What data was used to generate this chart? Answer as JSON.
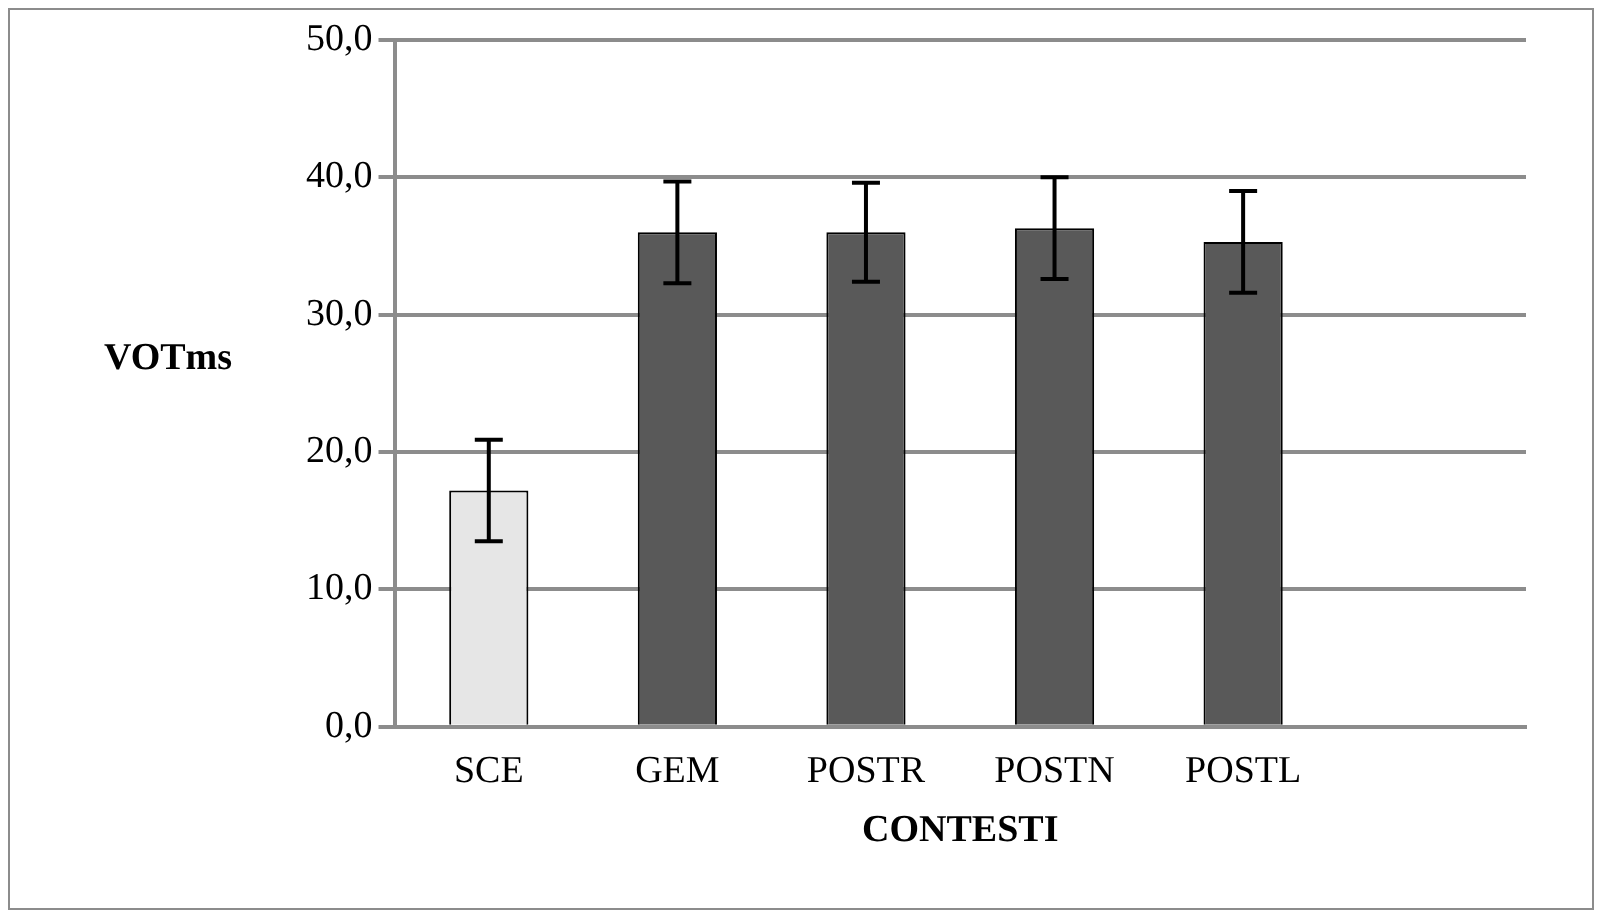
{
  "chart_data": {
    "type": "bar",
    "xlabel": "CONTESTI",
    "ylabel": "VOTms",
    "categories": [
      "SCE",
      "GEM",
      "POSTR",
      "POSTN",
      "POSTL",
      null
    ],
    "values": [
      17.2,
      36.0,
      36.0,
      36.3,
      35.3,
      null
    ],
    "errors": [
      3.7,
      3.7,
      3.6,
      3.7,
      3.7,
      null
    ],
    "colors": [
      "#e6e6e6",
      "#595959",
      "#595959",
      "#595959",
      "#595959",
      "#595959"
    ],
    "ylim": [
      0,
      50
    ],
    "yticks": [
      {
        "value": 0,
        "label": "0,0"
      },
      {
        "value": 10,
        "label": "10,0"
      },
      {
        "value": 20,
        "label": "20,0"
      },
      {
        "value": 30,
        "label": "30,0"
      },
      {
        "value": 40,
        "label": "40,0"
      },
      {
        "value": 50,
        "label": "50,0"
      }
    ],
    "grid": "y",
    "legend": false
  }
}
